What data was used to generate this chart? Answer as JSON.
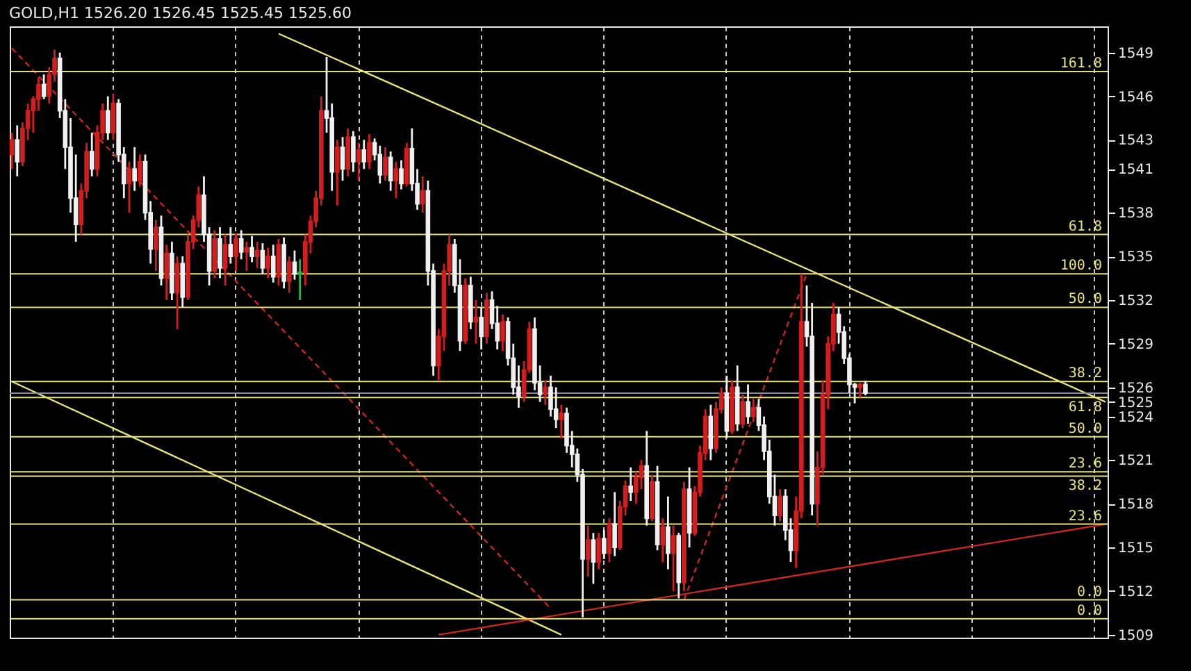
{
  "chart_data": {
    "type": "candlestick",
    "title": "GOLD,H1  1526.20 1526.45 1525.45 1525.60",
    "categories": [
      null,
      null,
      null,
      null,
      null,
      null,
      null,
      null,
      null,
      null,
      null,
      null,
      null,
      null,
      null,
      null,
      null,
      null,
      null,
      null,
      null,
      null,
      null,
      null,
      null,
      null,
      null,
      null,
      null,
      null,
      null,
      null,
      null,
      null,
      null,
      null,
      null,
      null,
      null,
      null,
      null,
      null,
      null,
      null,
      null,
      null,
      null,
      null,
      null,
      null,
      null,
      null,
      null,
      null,
      null,
      null,
      null,
      null,
      null,
      null,
      null,
      null,
      null,
      null,
      null,
      null,
      null,
      null,
      null,
      null,
      null,
      null,
      null,
      null,
      null,
      null,
      null,
      null,
      null,
      null,
      null,
      null,
      null,
      null,
      null,
      null,
      null,
      null,
      null,
      null,
      null,
      null,
      null,
      null,
      null,
      null,
      null,
      null,
      null,
      null,
      null,
      null,
      null,
      null,
      null,
      null,
      null,
      null,
      null,
      null,
      null,
      null,
      null,
      null,
      null,
      null,
      null,
      null,
      null,
      null,
      null,
      null,
      null,
      null,
      null,
      null,
      null,
      null,
      null,
      null,
      null,
      null,
      null,
      null,
      null,
      null,
      null,
      null,
      null,
      null,
      null,
      null,
      null,
      null,
      null,
      null,
      null,
      null,
      null,
      null,
      null,
      null,
      null,
      null,
      null,
      null,
      null,
      null,
      null,
      null,
      null,
      null,
      null,
      null,
      null,
      null,
      null,
      null,
      null,
      null,
      null,
      null,
      null,
      null,
      null,
      null,
      null,
      null,
      null,
      null,
      null,
      null,
      null,
      null,
      null,
      null,
      null,
      null,
      null,
      null,
      null,
      null,
      null,
      null,
      null,
      null,
      null,
      null,
      null,
      null,
      null,
      null,
      null,
      null,
      null,
      null
    ],
    "ohlc": [
      [
        1542.0,
        1543.5,
        1541.0,
        1543.0
      ],
      [
        1543.0,
        1544.0,
        1540.5,
        1541.5
      ],
      [
        1541.5,
        1544.2,
        1541.2,
        1543.8
      ],
      [
        1543.8,
        1545.5,
        1543.0,
        1545.0
      ],
      [
        1545.0,
        1546.0,
        1543.5,
        1545.8
      ],
      [
        1545.8,
        1547.3,
        1545.0,
        1546.8
      ],
      [
        1546.8,
        1547.5,
        1545.8,
        1546.0
      ],
      [
        1546.0,
        1548.0,
        1545.5,
        1547.5
      ],
      [
        1547.5,
        1549.2,
        1547.0,
        1548.6
      ],
      [
        1548.6,
        1549.0,
        1544.5,
        1545.0
      ],
      [
        1545.0,
        1545.8,
        1541.0,
        1542.5
      ],
      [
        1542.5,
        1544.5,
        1538.0,
        1539.0
      ],
      [
        1539.0,
        1542.0,
        1536.0,
        1537.2
      ],
      [
        1537.2,
        1540.0,
        1536.5,
        1539.5
      ],
      [
        1539.5,
        1542.8,
        1539.0,
        1542.2
      ],
      [
        1542.2,
        1543.5,
        1540.5,
        1541.0
      ],
      [
        1541.0,
        1544.0,
        1540.5,
        1543.5
      ],
      [
        1543.5,
        1545.5,
        1543.0,
        1545.0
      ],
      [
        1545.0,
        1546.0,
        1543.0,
        1543.5
      ],
      [
        1543.5,
        1546.2,
        1543.0,
        1545.5
      ],
      [
        1545.5,
        1545.8,
        1541.5,
        1542.0
      ],
      [
        1542.0,
        1542.5,
        1539.0,
        1540.0
      ],
      [
        1540.0,
        1541.5,
        1538.0,
        1541.0
      ],
      [
        1541.0,
        1542.5,
        1539.5,
        1540.2
      ],
      [
        1540.2,
        1542.0,
        1539.8,
        1541.5
      ],
      [
        1541.5,
        1542.0,
        1537.5,
        1538.0
      ],
      [
        1538.0,
        1538.8,
        1534.5,
        1535.5
      ],
      [
        1535.5,
        1537.5,
        1534.0,
        1537.0
      ],
      [
        1537.0,
        1537.8,
        1533.0,
        1533.5
      ],
      [
        1533.5,
        1535.8,
        1532.0,
        1535.2
      ],
      [
        1535.2,
        1536.0,
        1532.0,
        1532.5
      ],
      [
        1532.5,
        1535.0,
        1530.0,
        1534.5
      ],
      [
        1534.5,
        1535.0,
        1531.5,
        1532.2
      ],
      [
        1532.2,
        1536.5,
        1532.0,
        1536.0
      ],
      [
        1536.0,
        1537.8,
        1535.5,
        1537.5
      ],
      [
        1537.5,
        1539.8,
        1537.0,
        1539.2
      ],
      [
        1539.2,
        1540.5,
        1536.0,
        1536.5
      ],
      [
        1536.5,
        1537.0,
        1533.0,
        1534.0
      ],
      [
        1534.0,
        1536.8,
        1533.5,
        1536.2
      ],
      [
        1536.2,
        1537.0,
        1533.5,
        1534.2
      ],
      [
        1534.2,
        1536.5,
        1533.0,
        1535.8
      ],
      [
        1535.8,
        1537.0,
        1534.5,
        1535.0
      ],
      [
        1535.0,
        1536.6,
        1534.0,
        1536.2
      ],
      [
        1536.2,
        1536.8,
        1534.8,
        1535.3
      ],
      [
        1535.3,
        1536.0,
        1534.0,
        1535.6
      ],
      [
        1535.6,
        1536.4,
        1534.6,
        1535.0
      ],
      [
        1535.0,
        1536.0,
        1534.2,
        1535.4
      ],
      [
        1535.4,
        1535.9,
        1533.8,
        1534.2
      ],
      [
        1534.2,
        1535.6,
        1533.5,
        1535.0
      ],
      [
        1535.0,
        1535.8,
        1533.2,
        1533.6
      ],
      [
        1533.6,
        1536.2,
        1533.0,
        1535.8
      ],
      [
        1535.8,
        1536.3,
        1532.8,
        1533.3
      ],
      [
        1533.3,
        1535.0,
        1532.5,
        1534.6
      ],
      [
        1534.6,
        1535.4,
        1533.4,
        1533.8
      ],
      [
        1533.8,
        1534.8,
        1532.0,
        1533.9
      ],
      [
        1533.9,
        1536.5,
        1533.0,
        1536.0
      ],
      [
        1536.0,
        1537.8,
        1535.2,
        1537.4
      ],
      [
        1537.4,
        1539.5,
        1537.0,
        1539.0
      ],
      [
        1539.0,
        1546.0,
        1538.5,
        1545.0
      ],
      [
        1545.0,
        1548.7,
        1543.5,
        1544.5
      ],
      [
        1544.5,
        1545.5,
        1539.5,
        1540.8
      ],
      [
        1540.8,
        1543.0,
        1538.5,
        1542.5
      ],
      [
        1542.5,
        1543.2,
        1540.2,
        1541.0
      ],
      [
        1541.0,
        1543.8,
        1540.5,
        1543.2
      ],
      [
        1543.2,
        1543.6,
        1540.8,
        1541.5
      ],
      [
        1541.5,
        1542.8,
        1540.2,
        1542.3
      ],
      [
        1542.3,
        1543.0,
        1541.0,
        1541.5
      ],
      [
        1541.5,
        1543.4,
        1541.0,
        1542.8
      ],
      [
        1542.8,
        1543.1,
        1541.6,
        1542.0
      ],
      [
        1542.0,
        1542.6,
        1540.0,
        1540.6
      ],
      [
        1540.6,
        1542.5,
        1540.2,
        1541.8
      ],
      [
        1541.8,
        1542.2,
        1539.5,
        1540.2
      ],
      [
        1540.2,
        1541.5,
        1539.0,
        1541.0
      ],
      [
        1541.0,
        1541.6,
        1539.6,
        1540.0
      ],
      [
        1540.0,
        1542.8,
        1539.8,
        1542.4
      ],
      [
        1542.4,
        1543.8,
        1539.5,
        1540.0
      ],
      [
        1540.0,
        1541.0,
        1538.2,
        1538.6
      ],
      [
        1538.6,
        1540.5,
        1538.0,
        1539.5
      ],
      [
        1539.5,
        1540.2,
        1533.0,
        1534.0
      ],
      [
        1534.0,
        1534.5,
        1526.8,
        1527.5
      ],
      [
        1527.5,
        1530.0,
        1526.5,
        1529.5
      ],
      [
        1529.5,
        1534.5,
        1528.5,
        1534.0
      ],
      [
        1534.0,
        1536.5,
        1533.0,
        1535.8
      ],
      [
        1535.8,
        1536.2,
        1532.5,
        1533.0
      ],
      [
        1533.0,
        1534.8,
        1528.5,
        1529.2
      ],
      [
        1529.2,
        1533.5,
        1529.0,
        1533.0
      ],
      [
        1533.0,
        1533.6,
        1530.0,
        1530.5
      ],
      [
        1530.5,
        1532.0,
        1529.0,
        1530.8
      ],
      [
        1530.8,
        1531.5,
        1528.6,
        1529.5
      ],
      [
        1529.5,
        1532.5,
        1529.0,
        1532.0
      ],
      [
        1532.0,
        1532.6,
        1530.0,
        1530.4
      ],
      [
        1530.4,
        1531.6,
        1528.6,
        1529.2
      ],
      [
        1529.2,
        1531.0,
        1528.5,
        1530.5
      ],
      [
        1530.5,
        1530.8,
        1527.5,
        1528.0
      ],
      [
        1528.0,
        1529.0,
        1525.5,
        1526.0
      ],
      [
        1526.0,
        1527.5,
        1524.6,
        1525.4
      ],
      [
        1525.4,
        1527.8,
        1525.0,
        1527.2
      ],
      [
        1527.2,
        1530.5,
        1527.0,
        1530.0
      ],
      [
        1530.0,
        1530.8,
        1525.8,
        1526.3
      ],
      [
        1526.3,
        1527.5,
        1525.0,
        1525.5
      ],
      [
        1525.5,
        1526.5,
        1524.8,
        1526.0
      ],
      [
        1526.0,
        1526.8,
        1524.0,
        1524.5
      ],
      [
        1524.5,
        1526.0,
        1523.2,
        1523.8
      ],
      [
        1523.8,
        1524.8,
        1522.5,
        1524.2
      ],
      [
        1524.2,
        1524.6,
        1521.5,
        1522.0
      ],
      [
        1522.0,
        1523.0,
        1520.5,
        1521.4
      ],
      [
        1521.4,
        1521.8,
        1519.5,
        1520.0
      ],
      [
        1520.0,
        1520.4,
        1510.2,
        1514.2
      ],
      [
        1514.2,
        1516.5,
        1513.0,
        1515.5
      ],
      [
        1515.5,
        1516.0,
        1512.5,
        1514.0
      ],
      [
        1514.0,
        1516.0,
        1513.5,
        1515.6
      ],
      [
        1515.6,
        1516.2,
        1514.2,
        1514.6
      ],
      [
        1514.6,
        1517.0,
        1514.0,
        1516.6
      ],
      [
        1516.6,
        1518.8,
        1514.4,
        1515.0
      ],
      [
        1515.0,
        1518.2,
        1514.8,
        1517.8
      ],
      [
        1517.8,
        1519.6,
        1517.2,
        1519.2
      ],
      [
        1519.2,
        1520.5,
        1518.2,
        1518.8
      ],
      [
        1518.8,
        1520.2,
        1518.0,
        1519.8
      ],
      [
        1519.8,
        1521.0,
        1519.0,
        1520.6
      ],
      [
        1520.6,
        1523.0,
        1516.5,
        1517.0
      ],
      [
        1517.0,
        1520.0,
        1516.8,
        1519.5
      ],
      [
        1519.5,
        1520.6,
        1514.8,
        1515.2
      ],
      [
        1515.2,
        1517.0,
        1514.0,
        1516.4
      ],
      [
        1516.4,
        1518.5,
        1513.5,
        1514.6
      ],
      [
        1514.6,
        1516.5,
        1512.0,
        1515.8
      ],
      [
        1515.8,
        1516.0,
        1511.5,
        1512.6
      ],
      [
        1512.6,
        1519.5,
        1512.0,
        1519.0
      ],
      [
        1519.0,
        1520.5,
        1515.0,
        1516.0
      ],
      [
        1516.0,
        1519.2,
        1515.8,
        1518.8
      ],
      [
        1518.8,
        1522.0,
        1518.5,
        1521.5
      ],
      [
        1521.5,
        1524.5,
        1521.0,
        1524.0
      ],
      [
        1524.0,
        1524.8,
        1521.0,
        1521.8
      ],
      [
        1521.8,
        1525.0,
        1521.5,
        1524.5
      ],
      [
        1524.5,
        1526.0,
        1524.2,
        1525.6
      ],
      [
        1525.6,
        1526.8,
        1522.5,
        1523.0
      ],
      [
        1523.0,
        1526.5,
        1522.8,
        1526.0
      ],
      [
        1526.0,
        1527.5,
        1523.0,
        1523.5
      ],
      [
        1523.5,
        1525.5,
        1523.2,
        1525.0
      ],
      [
        1525.0,
        1526.2,
        1523.5,
        1524.0
      ],
      [
        1524.0,
        1525.2,
        1523.6,
        1524.6
      ],
      [
        1524.6,
        1525.2,
        1523.0,
        1523.4
      ],
      [
        1523.4,
        1524.0,
        1521.0,
        1521.6
      ],
      [
        1521.6,
        1522.4,
        1518.0,
        1518.5
      ],
      [
        1518.5,
        1520.0,
        1516.5,
        1517.2
      ],
      [
        1517.2,
        1519.0,
        1516.8,
        1518.5
      ],
      [
        1518.5,
        1519.0,
        1515.5,
        1516.2
      ],
      [
        1516.2,
        1517.0,
        1514.0,
        1514.8
      ],
      [
        1514.8,
        1518.5,
        1513.6,
        1517.5
      ],
      [
        1517.5,
        1533.8,
        1517.0,
        1530.5
      ],
      [
        1530.5,
        1533.0,
        1528.8,
        1529.5
      ],
      [
        1529.5,
        1531.8,
        1517.2,
        1518.0
      ],
      [
        1518.0,
        1521.6,
        1516.5,
        1520.5
      ],
      [
        1520.5,
        1526.5,
        1520.0,
        1525.5
      ],
      [
        1525.5,
        1529.5,
        1524.5,
        1529.0
      ],
      [
        1529.0,
        1531.8,
        1528.5,
        1531.0
      ],
      [
        1531.0,
        1531.5,
        1529.0,
        1529.8
      ],
      [
        1529.8,
        1530.2,
        1527.6,
        1528.0
      ],
      [
        1528.0,
        1528.3,
        1525.6,
        1526.2
      ],
      [
        1526.2,
        1526.3,
        1524.9,
        1526.0
      ],
      [
        1526.0,
        1526.3,
        1525.3,
        1526.2
      ],
      [
        1526.2,
        1526.45,
        1525.45,
        1525.6
      ],
      null,
      null,
      null,
      null,
      null,
      null,
      null,
      null,
      null,
      null,
      null,
      null,
      null,
      null,
      null,
      null,
      null,
      null,
      null,
      null,
      null,
      null,
      null,
      null,
      null,
      null,
      null,
      null,
      null,
      null,
      null,
      null,
      null,
      null,
      null,
      null,
      null,
      null,
      null,
      null,
      null,
      null,
      null,
      null,
      null
    ],
    "colors": [
      "#d41e1e",
      "#f0f0f0",
      "#d41e1e",
      "#d41e1e",
      "#d41e1e",
      "#d41e1e",
      "#f0f0f0",
      "#d41e1e",
      "#d41e1e",
      "#f0f0f0",
      "#f0f0f0",
      "#f0f0f0",
      "#f0f0f0",
      "#d41e1e",
      "#d41e1e",
      "#f0f0f0",
      "#d41e1e",
      "#d41e1e",
      "#f0f0f0",
      "#d41e1e",
      "#f0f0f0",
      "#f0f0f0",
      "#d41e1e",
      "#f0f0f0",
      "#d41e1e",
      "#f0f0f0",
      "#f0f0f0",
      "#d41e1e",
      "#f0f0f0",
      "#d41e1e",
      "#f0f0f0",
      "#d41e1e",
      "#f0f0f0",
      "#d41e1e",
      "#d41e1e",
      "#d41e1e",
      "#f0f0f0",
      "#f0f0f0",
      "#d41e1e",
      "#f0f0f0",
      "#d41e1e",
      "#f0f0f0",
      "#d41e1e",
      "#f0f0f0",
      "#d41e1e",
      "#f0f0f0",
      "#d41e1e",
      "#f0f0f0",
      "#d41e1e",
      "#f0f0f0",
      "#d41e1e",
      "#f0f0f0",
      "#d41e1e",
      "#f0f0f0",
      "#2fb33c",
      "#d41e1e",
      "#d41e1e",
      "#d41e1e",
      "#d41e1e",
      "#f0f0f0",
      "#f0f0f0",
      "#d41e1e",
      "#f0f0f0",
      "#d41e1e",
      "#f0f0f0",
      "#d41e1e",
      "#f0f0f0",
      "#d41e1e",
      "#f0f0f0",
      "#f0f0f0",
      "#d41e1e",
      "#f0f0f0",
      "#d41e1e",
      "#f0f0f0",
      "#d41e1e",
      "#f0f0f0",
      "#f0f0f0",
      "#d41e1e",
      "#f0f0f0",
      "#f0f0f0",
      "#d41e1e",
      "#d41e1e",
      "#d41e1e",
      "#f0f0f0",
      "#f0f0f0",
      "#d41e1e",
      "#f0f0f0",
      "#d41e1e",
      "#f0f0f0",
      "#d41e1e",
      "#f0f0f0",
      "#f0f0f0",
      "#d41e1e",
      "#f0f0f0",
      "#f0f0f0",
      "#f0f0f0",
      "#d41e1e",
      "#d41e1e",
      "#f0f0f0",
      "#f0f0f0",
      "#d41e1e",
      "#f0f0f0",
      "#f0f0f0",
      "#d41e1e",
      "#f0f0f0",
      "#f0f0f0",
      "#f0f0f0",
      "#f0f0f0",
      "#d41e1e",
      "#f0f0f0",
      "#d41e1e",
      "#f0f0f0",
      "#d41e1e",
      "#f0f0f0",
      "#d41e1e",
      "#d41e1e",
      "#f0f0f0",
      "#d41e1e",
      "#d41e1e",
      "#f0f0f0",
      "#d41e1e",
      "#f0f0f0",
      "#d41e1e",
      "#f0f0f0",
      "#d41e1e",
      "#f0f0f0",
      "#d41e1e",
      "#f0f0f0",
      "#d41e1e",
      "#d41e1e",
      "#d41e1e",
      "#f0f0f0",
      "#d41e1e",
      "#d41e1e",
      "#f0f0f0",
      "#d41e1e",
      "#f0f0f0",
      "#d41e1e",
      "#f0f0f0",
      "#d41e1e",
      "#f0f0f0",
      "#f0f0f0",
      "#f0f0f0",
      "#f0f0f0",
      "#d41e1e",
      "#f0f0f0",
      "#f0f0f0",
      "#d41e1e",
      "#d41e1e",
      "#f0f0f0",
      "#f0f0f0",
      "#d41e1e",
      "#d41e1e",
      "#d41e1e",
      "#d41e1e",
      "#f0f0f0",
      "#f0f0f0",
      "#f0f0f0",
      "#f0f0f0",
      "#d41e1e",
      "#f0f0f0",
      null,
      null,
      null,
      null,
      null,
      null,
      null,
      null,
      null,
      null,
      null,
      null,
      null,
      null,
      null,
      null,
      null,
      null,
      null,
      null,
      null,
      null,
      null,
      null,
      null,
      null,
      null,
      null,
      null,
      null,
      null,
      null,
      null,
      null,
      null,
      null,
      null,
      null,
      null,
      null,
      null,
      null,
      null,
      null,
      null
    ],
    "series": [
      {
        "type": "line",
        "color": "#e8e27a",
        "values": [
          null,
          null,
          null,
          null,
          null,
          null,
          null,
          null,
          null,
          null,
          null,
          null,
          null,
          null,
          null,
          null,
          null,
          null,
          null,
          null,
          null,
          null,
          null,
          null,
          null,
          null,
          null,
          null,
          null,
          null,
          null,
          null,
          null,
          null,
          null,
          null,
          null,
          null,
          null,
          null,
          null,
          null,
          null,
          null,
          null,
          null,
          null,
          null,
          null,
          null,
          1550.3,
          null,
          null,
          null,
          null,
          null,
          null,
          null,
          null,
          null,
          null,
          null,
          null,
          null,
          null,
          null,
          null,
          null,
          null,
          null,
          null,
          null,
          null,
          null,
          null,
          null,
          null,
          null,
          null,
          null,
          null,
          null,
          null,
          null,
          null,
          null,
          null,
          null,
          null,
          null,
          null,
          null,
          null,
          null,
          null,
          null,
          null,
          null,
          null,
          null,
          null,
          null,
          null,
          null,
          null,
          null,
          null,
          null,
          null,
          null,
          null,
          null,
          null,
          null,
          null,
          null,
          null,
          null,
          null,
          null,
          null,
          null,
          null,
          null,
          null,
          null,
          null,
          null,
          null,
          null,
          null,
          null,
          null,
          null,
          null,
          null,
          null,
          null,
          null,
          null,
          null,
          null,
          null,
          null,
          null,
          null,
          null,
          null,
          null,
          null,
          null,
          null,
          null,
          null,
          null,
          null,
          null,
          null,
          null,
          null,
          null,
          null,
          null,
          null,
          null,
          null,
          null,
          null,
          null,
          null,
          null,
          null,
          null,
          null,
          null,
          null,
          null,
          null,
          null,
          null,
          null,
          null,
          null,
          null,
          null,
          null,
          null,
          null,
          null,
          null,
          null,
          null,
          null,
          null,
          null,
          null,
          null,
          null,
          null,
          null,
          null,
          null,
          null,
          null,
          null,
          1525.0
        ]
      },
      {
        "type": "line",
        "color": "#e8e27a",
        "values": [
          1526.4,
          null,
          null,
          null,
          null,
          null,
          null,
          null,
          null,
          null,
          null,
          null,
          null,
          null,
          null,
          null,
          null,
          null,
          null,
          null,
          null,
          null,
          null,
          null,
          null,
          null,
          null,
          null,
          null,
          null,
          null,
          null,
          null,
          null,
          null,
          null,
          null,
          null,
          null,
          null,
          null,
          null,
          null,
          null,
          null,
          null,
          null,
          null,
          null,
          null,
          null,
          null,
          null,
          null,
          null,
          null,
          null,
          null,
          null,
          null,
          null,
          null,
          null,
          null,
          null,
          null,
          null,
          null,
          null,
          null,
          null,
          null,
          null,
          null,
          null,
          null,
          null,
          null,
          null,
          null,
          null,
          null,
          null,
          null,
          null,
          null,
          null,
          null,
          null,
          null,
          null,
          null,
          null,
          null,
          null,
          null,
          null,
          null,
          null,
          null,
          null,
          null,
          null,
          1509.0,
          null,
          null,
          null,
          null,
          null,
          null,
          null,
          null,
          null,
          null,
          null,
          null,
          null,
          null,
          null,
          null,
          null,
          null,
          null,
          null,
          null,
          null,
          null,
          null,
          null,
          null,
          null,
          null,
          null,
          null,
          null,
          null,
          null,
          null,
          null,
          null,
          null,
          null,
          null,
          null,
          null,
          null,
          null,
          null,
          null,
          null,
          null,
          null,
          null,
          null,
          null,
          null,
          null,
          null,
          null,
          null,
          null,
          null,
          null,
          null,
          null,
          null,
          null,
          null,
          null,
          null,
          null,
          null,
          null,
          null,
          null,
          null,
          null,
          null,
          null,
          null,
          null,
          null,
          null,
          null,
          null,
          null,
          null,
          null,
          null,
          null,
          null,
          null,
          null,
          null,
          null,
          null,
          null,
          null,
          null,
          null,
          null,
          null,
          null,
          null,
          null,
          null
        ]
      },
      {
        "type": "line",
        "color": "#c8281e",
        "values": [
          null,
          null,
          null,
          null,
          null,
          null,
          null,
          null,
          null,
          null,
          null,
          null,
          null,
          null,
          null,
          null,
          null,
          null,
          null,
          null,
          null,
          null,
          null,
          null,
          null,
          null,
          null,
          null,
          null,
          null,
          null,
          null,
          null,
          null,
          null,
          null,
          null,
          null,
          null,
          null,
          null,
          null,
          null,
          null,
          null,
          null,
          null,
          null,
          null,
          null,
          null,
          null,
          null,
          null,
          null,
          null,
          null,
          null,
          null,
          null,
          null,
          null,
          null,
          null,
          null,
          null,
          null,
          null,
          null,
          null,
          null,
          null,
          null,
          null,
          null,
          null,
          null,
          null,
          null,
          null,
          1509.0,
          null,
          null,
          null,
          null,
          null,
          null,
          null,
          null,
          null,
          null,
          null,
          null,
          null,
          null,
          null,
          null,
          null,
          null,
          null,
          null,
          null,
          null,
          null,
          null,
          null,
          null,
          null,
          null,
          null,
          null,
          null,
          null,
          null,
          null,
          null,
          null,
          null,
          null,
          null,
          null,
          null,
          null,
          null,
          null,
          null,
          null,
          null,
          null,
          null,
          null,
          null,
          null,
          null,
          null,
          null,
          null,
          null,
          null,
          null,
          null,
          null,
          null,
          null,
          null,
          null,
          null,
          null,
          null,
          null,
          null,
          null,
          null,
          null,
          null,
          null,
          null,
          null,
          null,
          null,
          null,
          null,
          null,
          null,
          null,
          null,
          null,
          null,
          null,
          null,
          null,
          null,
          null,
          null,
          null,
          null,
          null,
          null,
          null,
          null,
          null,
          null,
          null,
          null,
          null,
          null,
          null,
          null,
          null,
          null,
          null,
          null,
          null,
          null,
          null,
          null,
          null,
          null,
          null,
          null,
          null,
          null,
          null,
          null,
          null,
          1516.6
        ]
      },
      {
        "type": "line",
        "color": "#c8281e",
        "line_style": "dashed",
        "values": [
          1549.3,
          null,
          null,
          null,
          null,
          null,
          null,
          null,
          null,
          null,
          null,
          null,
          null,
          null,
          null,
          null,
          null,
          null,
          null,
          null,
          null,
          null,
          null,
          null,
          null,
          null,
          null,
          null,
          null,
          null,
          null,
          null,
          null,
          null,
          null,
          null,
          null,
          null,
          null,
          null,
          null,
          null,
          null,
          null,
          null,
          null,
          null,
          null,
          null,
          null,
          null,
          null,
          null,
          null,
          null,
          null,
          null,
          null,
          null,
          null,
          null,
          null,
          null,
          null,
          null,
          null,
          null,
          null,
          null,
          null,
          null,
          null,
          null,
          null,
          null,
          null,
          null,
          null,
          null,
          null,
          null,
          null,
          null,
          null,
          null,
          null,
          null,
          null,
          null,
          null,
          null,
          null,
          null,
          null,
          null,
          null,
          null,
          null,
          null,
          null,
          null,
          1510.8,
          null,
          null,
          null,
          null,
          null,
          null,
          null,
          null,
          null,
          null,
          null,
          null,
          null,
          null,
          null,
          null,
          null,
          null,
          null,
          null,
          null,
          null,
          null,
          null,
          null,
          null,
          null,
          null,
          null,
          null,
          null,
          null,
          null,
          null,
          null,
          null,
          null,
          null,
          null,
          null,
          null,
          null,
          null,
          null,
          null,
          null,
          null,
          null,
          null,
          null,
          null,
          null,
          null,
          null,
          null,
          null,
          null,
          null,
          null,
          null,
          null,
          null,
          null,
          null,
          null,
          null,
          null,
          null,
          null,
          null,
          null,
          null,
          null,
          null,
          null,
          null,
          null,
          null,
          null,
          null,
          null,
          null,
          null,
          null,
          null,
          null,
          null,
          null,
          null,
          null,
          null,
          null,
          null,
          null,
          null,
          null,
          null,
          null,
          null,
          null,
          null,
          null,
          null,
          null
        ]
      },
      {
        "type": "line",
        "color": "#c8281e",
        "line_style": "dashed",
        "values": [
          null,
          null,
          null,
          null,
          null,
          null,
          null,
          null,
          null,
          null,
          null,
          null,
          null,
          null,
          null,
          null,
          null,
          null,
          null,
          null,
          null,
          null,
          null,
          null,
          null,
          null,
          null,
          null,
          null,
          null,
          null,
          null,
          null,
          null,
          null,
          null,
          null,
          null,
          null,
          null,
          null,
          null,
          null,
          null,
          null,
          null,
          null,
          null,
          null,
          null,
          null,
          null,
          null,
          null,
          null,
          null,
          null,
          null,
          null,
          null,
          null,
          null,
          null,
          null,
          null,
          null,
          null,
          null,
          null,
          null,
          null,
          null,
          null,
          null,
          null,
          null,
          null,
          null,
          null,
          null,
          null,
          null,
          null,
          null,
          null,
          null,
          null,
          null,
          null,
          null,
          null,
          null,
          null,
          null,
          null,
          null,
          null,
          null,
          null,
          null,
          null,
          null,
          null,
          null,
          null,
          null,
          null,
          null,
          null,
          null,
          null,
          null,
          null,
          null,
          null,
          null,
          null,
          null,
          null,
          null,
          null,
          null,
          null,
          null,
          null,
          null,
          1511.4,
          null,
          null,
          null,
          null,
          null,
          null,
          null,
          null,
          null,
          null,
          null,
          null,
          null,
          null,
          null,
          null,
          null,
          null,
          null,
          null,
          null,
          null,
          1533.8,
          null,
          null,
          null,
          null,
          null,
          null,
          null,
          null,
          null,
          null,
          null,
          null,
          null,
          null,
          null,
          null,
          null,
          null,
          null,
          null,
          null,
          null,
          null,
          null,
          null,
          null,
          null,
          null,
          null,
          null,
          null,
          null,
          null,
          null,
          null,
          null,
          null,
          null,
          null,
          null,
          null,
          null,
          null,
          null,
          null,
          null,
          null,
          null,
          null,
          null,
          null,
          null,
          null,
          null,
          null,
          null
        ]
      }
    ],
    "ylim": [
      1508.8,
      1550.8
    ],
    "yticks": [
      1509,
      1512,
      1515,
      1518,
      1521,
      1524,
      1525,
      1526,
      1529,
      1532,
      1535,
      1538,
      1541,
      1543,
      1546,
      1549
    ],
    "ref_lines": [
      {
        "axis": "y",
        "value": 1547.7,
        "color": "#e8e27a"
      },
      {
        "axis": "y",
        "value": 1536.5,
        "color": "#e8e27a"
      },
      {
        "axis": "y",
        "value": 1533.8,
        "color": "#e8e27a"
      },
      {
        "axis": "y",
        "value": 1531.5,
        "color": "#e8e27a"
      },
      {
        "axis": "y",
        "value": 1526.4,
        "color": "#e8e27a"
      },
      {
        "axis": "y",
        "value": 1525.3,
        "color": "#e8e27a"
      },
      {
        "axis": "y",
        "value": 1525.6,
        "color": "#8a8aa0"
      },
      {
        "axis": "y",
        "value": 1522.6,
        "color": "#e8e27a"
      },
      {
        "axis": "y",
        "value": 1520.2,
        "color": "#e8e27a"
      },
      {
        "axis": "y",
        "value": 1519.9,
        "color": "#e8e27a"
      },
      {
        "axis": "y",
        "value": 1516.6,
        "color": "#e8e27a"
      },
      {
        "axis": "y",
        "value": 1511.4,
        "color": "#e8e27a"
      },
      {
        "axis": "y",
        "value": 1510.1,
        "color": "#e8e27a"
      }
    ],
    "annotations": [
      {
        "text": "161.8",
        "y": 1547.7
      },
      {
        "text": "61.8",
        "y": 1536.5
      },
      {
        "text": "100.0",
        "y": 1533.8
      },
      {
        "text": "50.0",
        "y": 1531.5
      },
      {
        "text": "38.2",
        "y": 1526.4
      },
      {
        "text": "61.8",
        "y": 1525.3
      },
      {
        "text": "50.0",
        "y": 1522.6
      },
      {
        "text": "23.6",
        "y": 1520.2
      },
      {
        "text": "38.2",
        "y": 1519.9
      },
      {
        "text": "23.6",
        "y": 1516.6
      },
      {
        "text": "0.0",
        "y": 1511.4
      },
      {
        "text": "0.0",
        "y": 1510.1
      }
    ],
    "grid": "x",
    "tick_labels": "y"
  }
}
